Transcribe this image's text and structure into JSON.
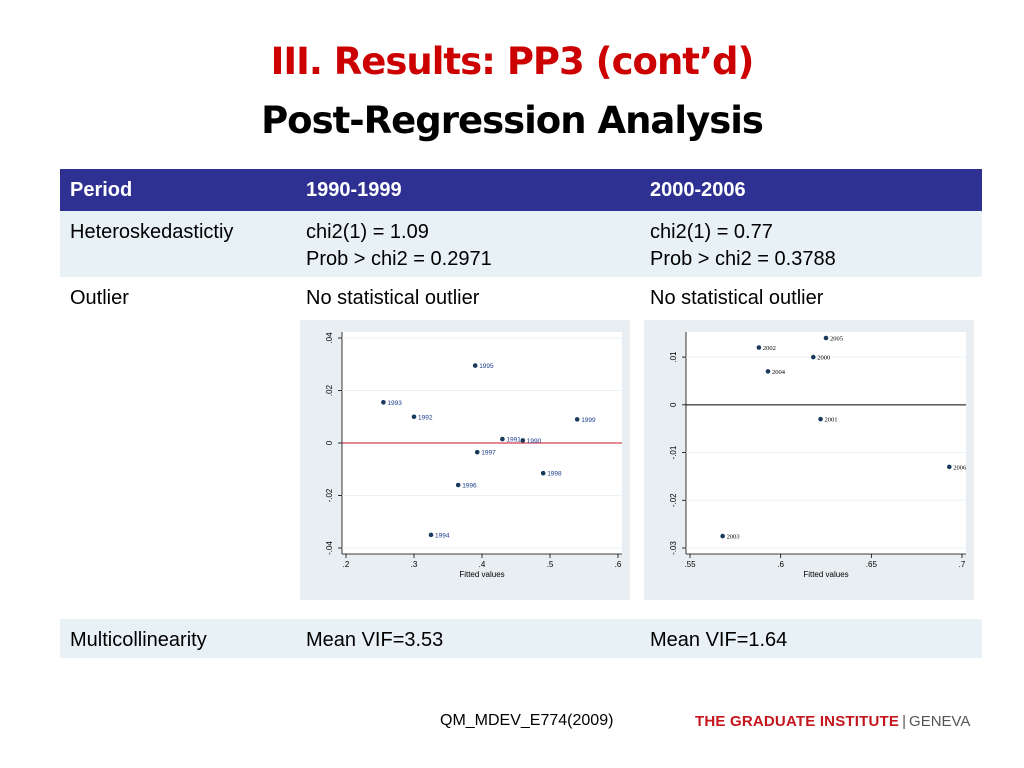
{
  "slide": {
    "title_line1": "III. Results: PP3 (cont’d)",
    "title_line2": "Post-Regression Analysis"
  },
  "table": {
    "headers": [
      "Period",
      "1990-1999",
      "2000-2006"
    ],
    "rows": [
      {
        "label": "Heteroskedastictiy",
        "c1": [
          "chi2(1) = 1.09",
          "Prob > chi2 = 0.2971"
        ],
        "c2": [
          "chi2(1) = 0.77",
          "Prob > chi2 = 0.3788"
        ]
      },
      {
        "label": "Outlier",
        "c1": "No statistical outlier",
        "c2": "No statistical outlier"
      },
      {
        "label": "Multicollinearity",
        "c1": "Mean VIF=3.53",
        "c2": "Mean VIF=1.64"
      }
    ]
  },
  "chart_data": [
    {
      "type": "scatter",
      "xlabel": "Fitted values",
      "ylabel": "",
      "xlim": [
        0.2,
        0.6
      ],
      "ylim": [
        -0.04,
        0.04
      ],
      "xticks": [
        ".2",
        ".3",
        ".4",
        ".5",
        ".6"
      ],
      "yticks": [
        "-.04",
        "-.02",
        "0",
        ".02",
        ".04"
      ],
      "ytick_values": [
        -0.04,
        -0.02,
        0,
        0.02,
        0.04
      ],
      "xtick_values": [
        0.2,
        0.3,
        0.4,
        0.5,
        0.6
      ],
      "reference_line": {
        "y": 0,
        "color": "#c8102e"
      },
      "points": [
        {
          "label": "1995",
          "x": 0.39,
          "y": 0.0295
        },
        {
          "label": "1993",
          "x": 0.255,
          "y": 0.0155
        },
        {
          "label": "1992",
          "x": 0.3,
          "y": 0.01
        },
        {
          "label": "1999",
          "x": 0.54,
          "y": 0.009
        },
        {
          "label": "1991",
          "x": 0.43,
          "y": 0.0015
        },
        {
          "label": "1990",
          "x": 0.46,
          "y": 0.001
        },
        {
          "label": "1997",
          "x": 0.393,
          "y": -0.0035
        },
        {
          "label": "1998",
          "x": 0.49,
          "y": -0.0115
        },
        {
          "label": "1996",
          "x": 0.365,
          "y": -0.016
        },
        {
          "label": "1994",
          "x": 0.325,
          "y": -0.035
        }
      ]
    },
    {
      "type": "scatter",
      "xlabel": "Fitted values",
      "ylabel": "",
      "xlim": [
        0.55,
        0.7
      ],
      "ylim": [
        -0.03,
        0.014
      ],
      "xticks": [
        ".55",
        ".6",
        ".65",
        ".7"
      ],
      "yticks": [
        "-.03",
        "-.02",
        "-.01",
        "0",
        ".01"
      ],
      "ytick_values": [
        -0.03,
        -0.02,
        -0.01,
        0,
        0.01
      ],
      "xtick_values": [
        0.55,
        0.6,
        0.65,
        0.7
      ],
      "reference_line": {
        "y": 0,
        "color": "#000000"
      },
      "points": [
        {
          "label": "2005",
          "x": 0.625,
          "y": 0.014
        },
        {
          "label": "2002",
          "x": 0.588,
          "y": 0.012
        },
        {
          "label": "2000",
          "x": 0.618,
          "y": 0.01
        },
        {
          "label": "2004",
          "x": 0.593,
          "y": 0.007
        },
        {
          "label": "2001",
          "x": 0.622,
          "y": -0.003
        },
        {
          "label": "2006",
          "x": 0.693,
          "y": -0.013
        },
        {
          "label": "2003",
          "x": 0.568,
          "y": -0.0275
        }
      ]
    }
  ],
  "footer": {
    "course": "QM_MDEV_E774(2009)",
    "logo_main": "THE GRADUATE INSTITUTE",
    "logo_sep": "|",
    "logo_sub": "GENEVA"
  },
  "colors": {
    "title_red": "#cc0000",
    "header_bg": "#2e3192",
    "row_light": "#e8f1f5",
    "marker": "#1a3a5c",
    "logo_red": "#c4161c"
  }
}
